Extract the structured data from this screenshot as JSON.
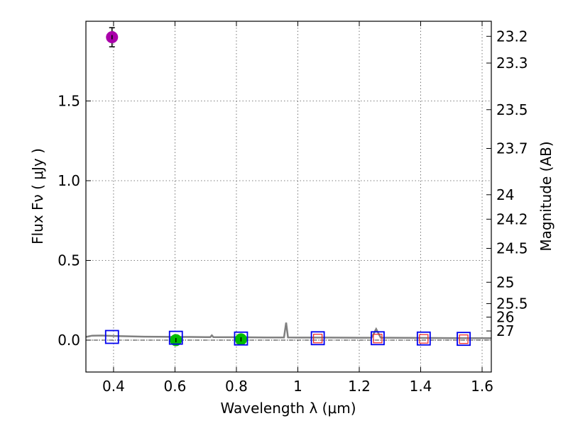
{
  "chart_data": {
    "type": "scatter",
    "title": "",
    "xlabel": "Wavelength  λ (μm)",
    "ylabel": "Flux  Fν  ( μJy )",
    "ylabel_right": "Magnitude (AB)",
    "xlim": [
      0.31,
      1.63
    ],
    "ylim": [
      -0.2,
      2.0
    ],
    "grid": true,
    "x_ticks": [
      {
        "value": 0.4,
        "label": "0.4"
      },
      {
        "value": 0.6,
        "label": "0.6"
      },
      {
        "value": 0.8,
        "label": "0.8"
      },
      {
        "value": 1.0,
        "label": "1"
      },
      {
        "value": 1.2,
        "label": "1.2"
      },
      {
        "value": 1.4,
        "label": "1.4"
      },
      {
        "value": 1.6,
        "label": "1.6"
      }
    ],
    "y_ticks": [
      {
        "value": 0.0,
        "label": "0.0"
      },
      {
        "value": 0.5,
        "label": "0.5"
      },
      {
        "value": 1.0,
        "label": "1.0"
      },
      {
        "value": 1.5,
        "label": "1.5"
      }
    ],
    "right_ticks": [
      {
        "mag": 23.2,
        "label": "23.2"
      },
      {
        "mag": 23.3,
        "label": "23.3"
      },
      {
        "mag": 23.5,
        "label": "23.5"
      },
      {
        "mag": 23.7,
        "label": "23.7"
      },
      {
        "mag": 24,
        "label": "24"
      },
      {
        "mag": 24.2,
        "label": "24.2"
      },
      {
        "mag": 24.5,
        "label": "24.5"
      },
      {
        "mag": 25,
        "label": "25"
      },
      {
        "mag": 25.5,
        "label": "25.5"
      },
      {
        "mag": 26,
        "label": "26"
      },
      {
        "mag": 27,
        "label": "27"
      }
    ],
    "sed_model": {
      "color": "#808080",
      "points": [
        [
          0.31,
          0.02
        ],
        [
          0.33,
          0.028
        ],
        [
          0.36,
          0.029
        ],
        [
          0.4,
          0.026
        ],
        [
          0.45,
          0.024
        ],
        [
          0.5,
          0.022
        ],
        [
          0.55,
          0.021
        ],
        [
          0.6,
          0.02
        ],
        [
          0.65,
          0.02
        ],
        [
          0.7,
          0.019
        ],
        [
          0.715,
          0.019
        ],
        [
          0.72,
          0.03
        ],
        [
          0.725,
          0.019
        ],
        [
          0.8,
          0.018
        ],
        [
          0.9,
          0.017
        ],
        [
          0.955,
          0.017
        ],
        [
          0.962,
          0.11
        ],
        [
          0.968,
          0.017
        ],
        [
          1.0,
          0.016
        ],
        [
          1.1,
          0.016
        ],
        [
          1.2,
          0.015
        ],
        [
          1.24,
          0.015
        ],
        [
          1.255,
          0.07
        ],
        [
          1.27,
          0.015
        ],
        [
          1.3,
          0.015
        ],
        [
          1.4,
          0.014
        ],
        [
          1.5,
          0.013
        ],
        [
          1.63,
          0.012
        ]
      ]
    },
    "zero_line": {
      "value": 0.0,
      "color": "#000000"
    },
    "series": [
      {
        "name": "detection-magenta",
        "marker": "circle",
        "color": "#aa00aa",
        "points": [
          {
            "x": 0.395,
            "y": 1.9,
            "yerr": 0.06
          }
        ]
      },
      {
        "name": "detection-green",
        "marker": "circle",
        "color": "#00bb00",
        "points": [
          {
            "x": 0.603,
            "y": 0.0,
            "yerr": 0.01
          },
          {
            "x": 0.815,
            "y": 0.005,
            "yerr": 0.01
          }
        ]
      },
      {
        "name": "model-blue-squares",
        "marker": "square",
        "color": "#0000ee",
        "points": [
          {
            "x": 0.395,
            "y": 0.02
          },
          {
            "x": 0.603,
            "y": 0.015
          },
          {
            "x": 0.815,
            "y": 0.01
          },
          {
            "x": 1.065,
            "y": 0.012
          },
          {
            "x": 1.26,
            "y": 0.012
          },
          {
            "x": 1.41,
            "y": 0.01
          },
          {
            "x": 1.54,
            "y": 0.008
          }
        ]
      },
      {
        "name": "upper-limit-red",
        "marker": "square",
        "color": "#ee2222",
        "points": [
          {
            "x": 1.065,
            "y": 0.01
          },
          {
            "x": 1.26,
            "y": 0.01
          },
          {
            "x": 1.41,
            "y": 0.008
          },
          {
            "x": 1.54,
            "y": 0.006
          }
        ]
      }
    ]
  }
}
